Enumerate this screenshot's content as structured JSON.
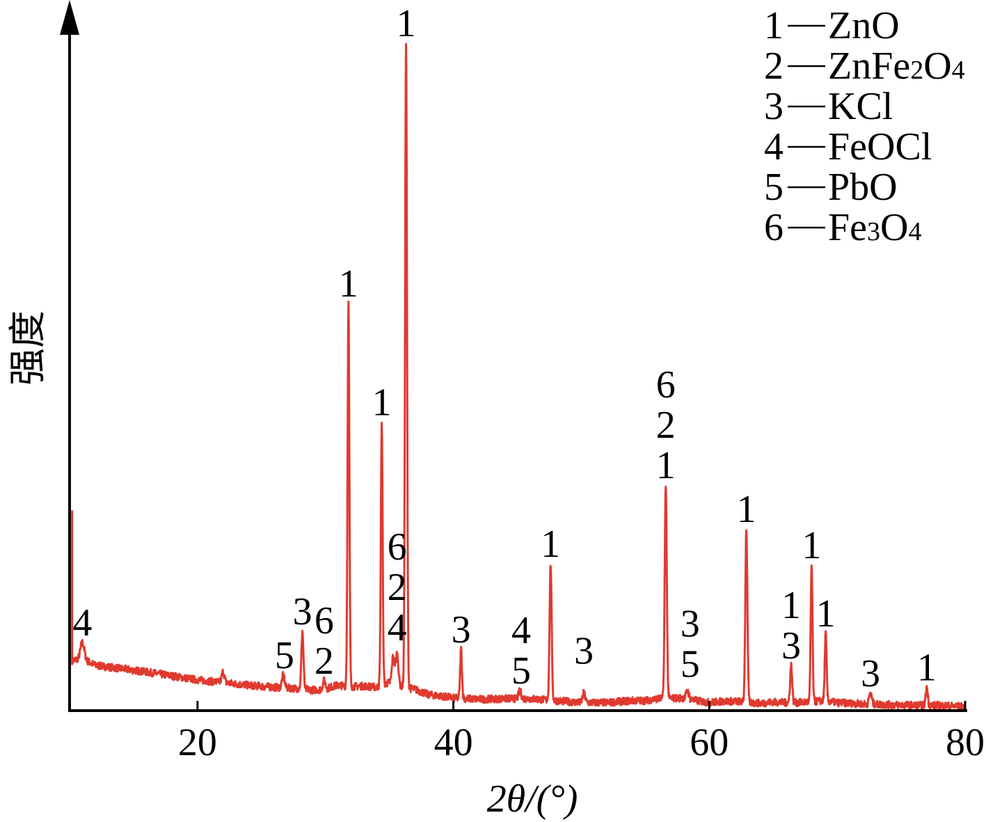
{
  "chart_data": {
    "type": "line",
    "xlabel": "2θ/(°)",
    "ylabel": "强度",
    "xlim": [
      10,
      80
    ],
    "ylim": [
      0,
      100
    ],
    "xticks": [
      20,
      40,
      60,
      80
    ],
    "grid": false,
    "legend_position": "top-right",
    "line_color": "#e03a2f",
    "legend": [
      {
        "id": "1",
        "sep": "—",
        "parts": [
          {
            "t": "ZnO"
          }
        ]
      },
      {
        "id": "2",
        "sep": "—",
        "parts": [
          {
            "t": "ZnFe"
          },
          {
            "t": "2",
            "sub": true
          },
          {
            "t": "O"
          },
          {
            "t": "4",
            "sub": true
          }
        ]
      },
      {
        "id": "3",
        "sep": "—",
        "parts": [
          {
            "t": "KCl"
          }
        ]
      },
      {
        "id": "4",
        "sep": "—",
        "parts": [
          {
            "t": "FeOCl"
          }
        ]
      },
      {
        "id": "5",
        "sep": "—",
        "parts": [
          {
            "t": "PbO"
          }
        ]
      },
      {
        "id": "6",
        "sep": "—",
        "parts": [
          {
            "t": "Fe"
          },
          {
            "t": "3",
            "sub": true
          },
          {
            "t": "O"
          },
          {
            "t": "4",
            "sub": true
          }
        ]
      }
    ],
    "series": [
      {
        "values": [
          [
            10.2,
            7.5
          ],
          [
            11,
            7.8
          ],
          [
            12,
            6.8
          ],
          [
            14,
            6.3
          ],
          [
            16,
            5.8
          ],
          [
            18,
            5.2
          ],
          [
            20,
            4.6
          ],
          [
            22,
            4.2
          ],
          [
            24,
            3.8
          ],
          [
            26,
            3.5
          ],
          [
            27,
            3.4
          ],
          [
            28,
            3.3
          ],
          [
            29,
            3.1
          ],
          [
            30,
            3.2
          ],
          [
            30.5,
            3.6
          ],
          [
            31,
            3.8
          ],
          [
            32,
            3.6
          ],
          [
            33,
            3.7
          ],
          [
            34,
            3.5
          ],
          [
            35,
            4.2
          ],
          [
            36,
            3.6
          ],
          [
            37,
            3.2
          ],
          [
            38,
            2.4
          ],
          [
            39,
            2.2
          ],
          [
            40,
            1.9
          ],
          [
            42,
            1.7
          ],
          [
            44,
            1.8
          ],
          [
            46,
            1.8
          ],
          [
            48,
            1.5
          ],
          [
            50,
            1.2
          ],
          [
            52,
            1.2
          ],
          [
            54,
            1.5
          ],
          [
            55,
            1.5
          ],
          [
            56,
            1.8
          ],
          [
            58,
            1.9
          ],
          [
            59,
            1.5
          ],
          [
            60,
            1.2
          ],
          [
            61,
            1.4
          ],
          [
            62,
            1.4
          ],
          [
            64,
            1.1
          ],
          [
            65,
            1.3
          ],
          [
            66,
            1.2
          ],
          [
            67,
            1.2
          ],
          [
            69,
            1.5
          ],
          [
            70,
            1.2
          ],
          [
            72,
            1.0
          ],
          [
            74,
            0.9
          ],
          [
            76,
            0.8
          ],
          [
            78,
            0.8
          ],
          [
            80,
            0.6
          ]
        ],
        "peaks": [
          {
            "x": 11.0,
            "h": 10.2,
            "w": 0.15
          },
          {
            "x": 22.0,
            "h": 5.8,
            "w": 0.1
          },
          {
            "x": 26.7,
            "h": 5.3,
            "w": 0.1
          },
          {
            "x": 28.2,
            "h": 11.9,
            "w": 0.08
          },
          {
            "x": 29.9,
            "h": 4.5,
            "w": 0.1
          },
          {
            "x": 31.8,
            "h": 61.0,
            "w": 0.07
          },
          {
            "x": 34.4,
            "h": 43.2,
            "w": 0.07
          },
          {
            "x": 35.3,
            "h": 8.2,
            "w": 0.1
          },
          {
            "x": 35.6,
            "h": 8.5,
            "w": 0.1
          },
          {
            "x": 36.3,
            "h": 100.0,
            "w": 0.075
          },
          {
            "x": 40.6,
            "h": 9.2,
            "w": 0.07
          },
          {
            "x": 45.2,
            "h": 3.0,
            "w": 0.1
          },
          {
            "x": 47.6,
            "h": 22.0,
            "w": 0.08
          },
          {
            "x": 50.2,
            "h": 2.6,
            "w": 0.1
          },
          {
            "x": 56.6,
            "h": 33.8,
            "w": 0.08
          },
          {
            "x": 58.3,
            "h": 3.0,
            "w": 0.1
          },
          {
            "x": 62.9,
            "h": 27.2,
            "w": 0.08
          },
          {
            "x": 66.4,
            "h": 6.8,
            "w": 0.08
          },
          {
            "x": 68.0,
            "h": 21.8,
            "w": 0.07
          },
          {
            "x": 69.1,
            "h": 11.6,
            "w": 0.07
          },
          {
            "x": 72.6,
            "h": 2.6,
            "w": 0.1
          },
          {
            "x": 77.0,
            "h": 3.5,
            "w": 0.08
          }
        ]
      }
    ],
    "annotations": [
      {
        "x": 11.0,
        "y": 10.2,
        "labels": [
          "4"
        ]
      },
      {
        "x": 28.2,
        "y": 11.9,
        "labels": [
          "3"
        ]
      },
      {
        "x": 26.8,
        "y": 5.3,
        "labels": [
          "5"
        ]
      },
      {
        "x": 29.9,
        "y": 4.5,
        "labels": [
          "6",
          "2"
        ]
      },
      {
        "x": 31.8,
        "y": 61.0,
        "labels": [
          "1"
        ]
      },
      {
        "x": 34.4,
        "y": 43.2,
        "labels": [
          "1"
        ]
      },
      {
        "x": 35.6,
        "y": 9.5,
        "labels": [
          "6",
          "2",
          "4"
        ]
      },
      {
        "x": 36.3,
        "y": 100.0,
        "labels": [
          "1"
        ]
      },
      {
        "x": 40.6,
        "y": 9.2,
        "labels": [
          "3"
        ]
      },
      {
        "x": 45.3,
        "y": 3.0,
        "labels": [
          "4",
          "5"
        ]
      },
      {
        "x": 47.6,
        "y": 22.0,
        "labels": [
          "1"
        ]
      },
      {
        "x": 50.2,
        "y": 6.0,
        "labels": [
          "3"
        ]
      },
      {
        "x": 56.6,
        "y": 33.8,
        "labels": [
          "6",
          "2",
          "1"
        ]
      },
      {
        "x": 58.5,
        "y": 4.0,
        "labels": [
          "3",
          "5"
        ]
      },
      {
        "x": 62.9,
        "y": 27.2,
        "labels": [
          "1"
        ]
      },
      {
        "x": 66.4,
        "y": 6.8,
        "labels": [
          "1",
          "3"
        ]
      },
      {
        "x": 68.0,
        "y": 21.8,
        "labels": [
          "1"
        ]
      },
      {
        "x": 69.1,
        "y": 11.6,
        "labels": [
          "1"
        ]
      },
      {
        "x": 72.6,
        "y": 2.6,
        "labels": [
          "3"
        ]
      },
      {
        "x": 77.0,
        "y": 3.5,
        "labels": [
          "1"
        ]
      }
    ]
  }
}
